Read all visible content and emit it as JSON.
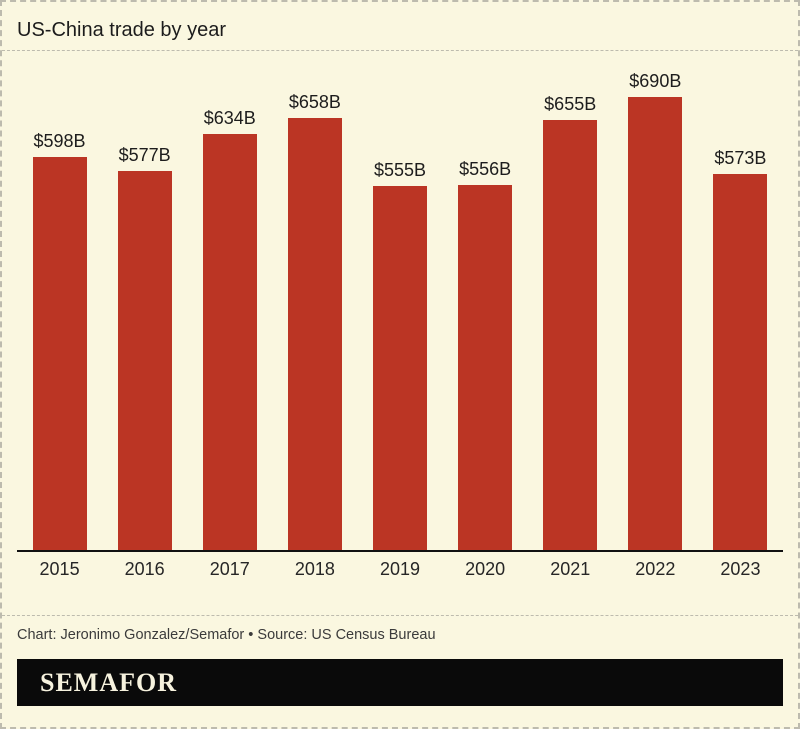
{
  "header": {
    "title": "US-China trade by year"
  },
  "chart_data": {
    "type": "bar",
    "title": "US-China trade by year",
    "categories": [
      "2015",
      "2016",
      "2017",
      "2018",
      "2019",
      "2020",
      "2021",
      "2022",
      "2023"
    ],
    "values": [
      598,
      577,
      634,
      658,
      555,
      556,
      655,
      690,
      573
    ],
    "labels": [
      "$598B",
      "$577B",
      "$634B",
      "$658B",
      "$555B",
      "$556B",
      "$655B",
      "$690B",
      "$573B"
    ],
    "unit": "billions of US dollars",
    "xlabel": "",
    "ylabel": "",
    "ylim": [
      0,
      690
    ],
    "grid": false,
    "legend": "none",
    "bar_color": "#BB3524",
    "axis_color": "#111111"
  },
  "footer": {
    "credit": "Chart: Jeronimo Gonzalez/Semafor • Source: US Census Bureau",
    "logo_text": "SEMAFOR"
  },
  "colors": {
    "background": "#FAF7E0",
    "bar": "#BB3524",
    "dashed_border": "#BDBBAE",
    "logo_bar_background": "#0A0A0A",
    "logo_text": "#F6F2DE"
  }
}
